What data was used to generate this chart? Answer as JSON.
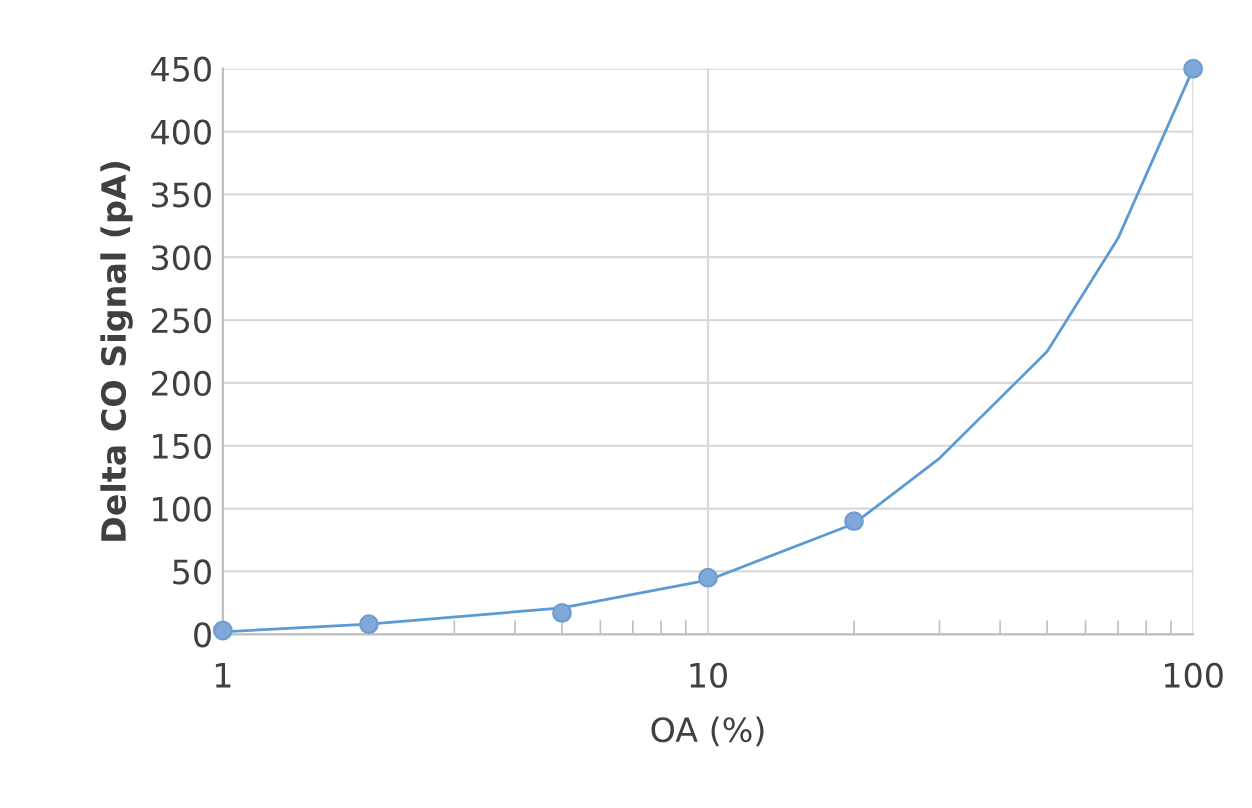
{
  "chart_data": {
    "type": "scatter",
    "xlabel": "OA (%)",
    "ylabel": "Delta CO Signal (pA)",
    "log": "x",
    "grid": true,
    "xlim": [
      1,
      100
    ],
    "xticks": [
      1,
      10,
      100
    ],
    "ylim": [
      0,
      450
    ],
    "yticks": [
      0,
      50,
      100,
      150,
      200,
      250,
      300,
      350,
      400,
      450
    ],
    "series": [
      {
        "marker": "circle",
        "color": "#7fa8d8",
        "x": [
          1,
          2,
          5,
          10,
          20,
          100
        ],
        "values": [
          3,
          8,
          17,
          45,
          90,
          450
        ]
      },
      {
        "type": "line",
        "marker": "none",
        "color": "#5b9bd5",
        "x": [
          1,
          2,
          5,
          10,
          20,
          30,
          50,
          70,
          100
        ],
        "values": [
          2,
          8,
          21,
          43,
          88,
          140,
          225,
          315,
          450
        ]
      }
    ]
  }
}
